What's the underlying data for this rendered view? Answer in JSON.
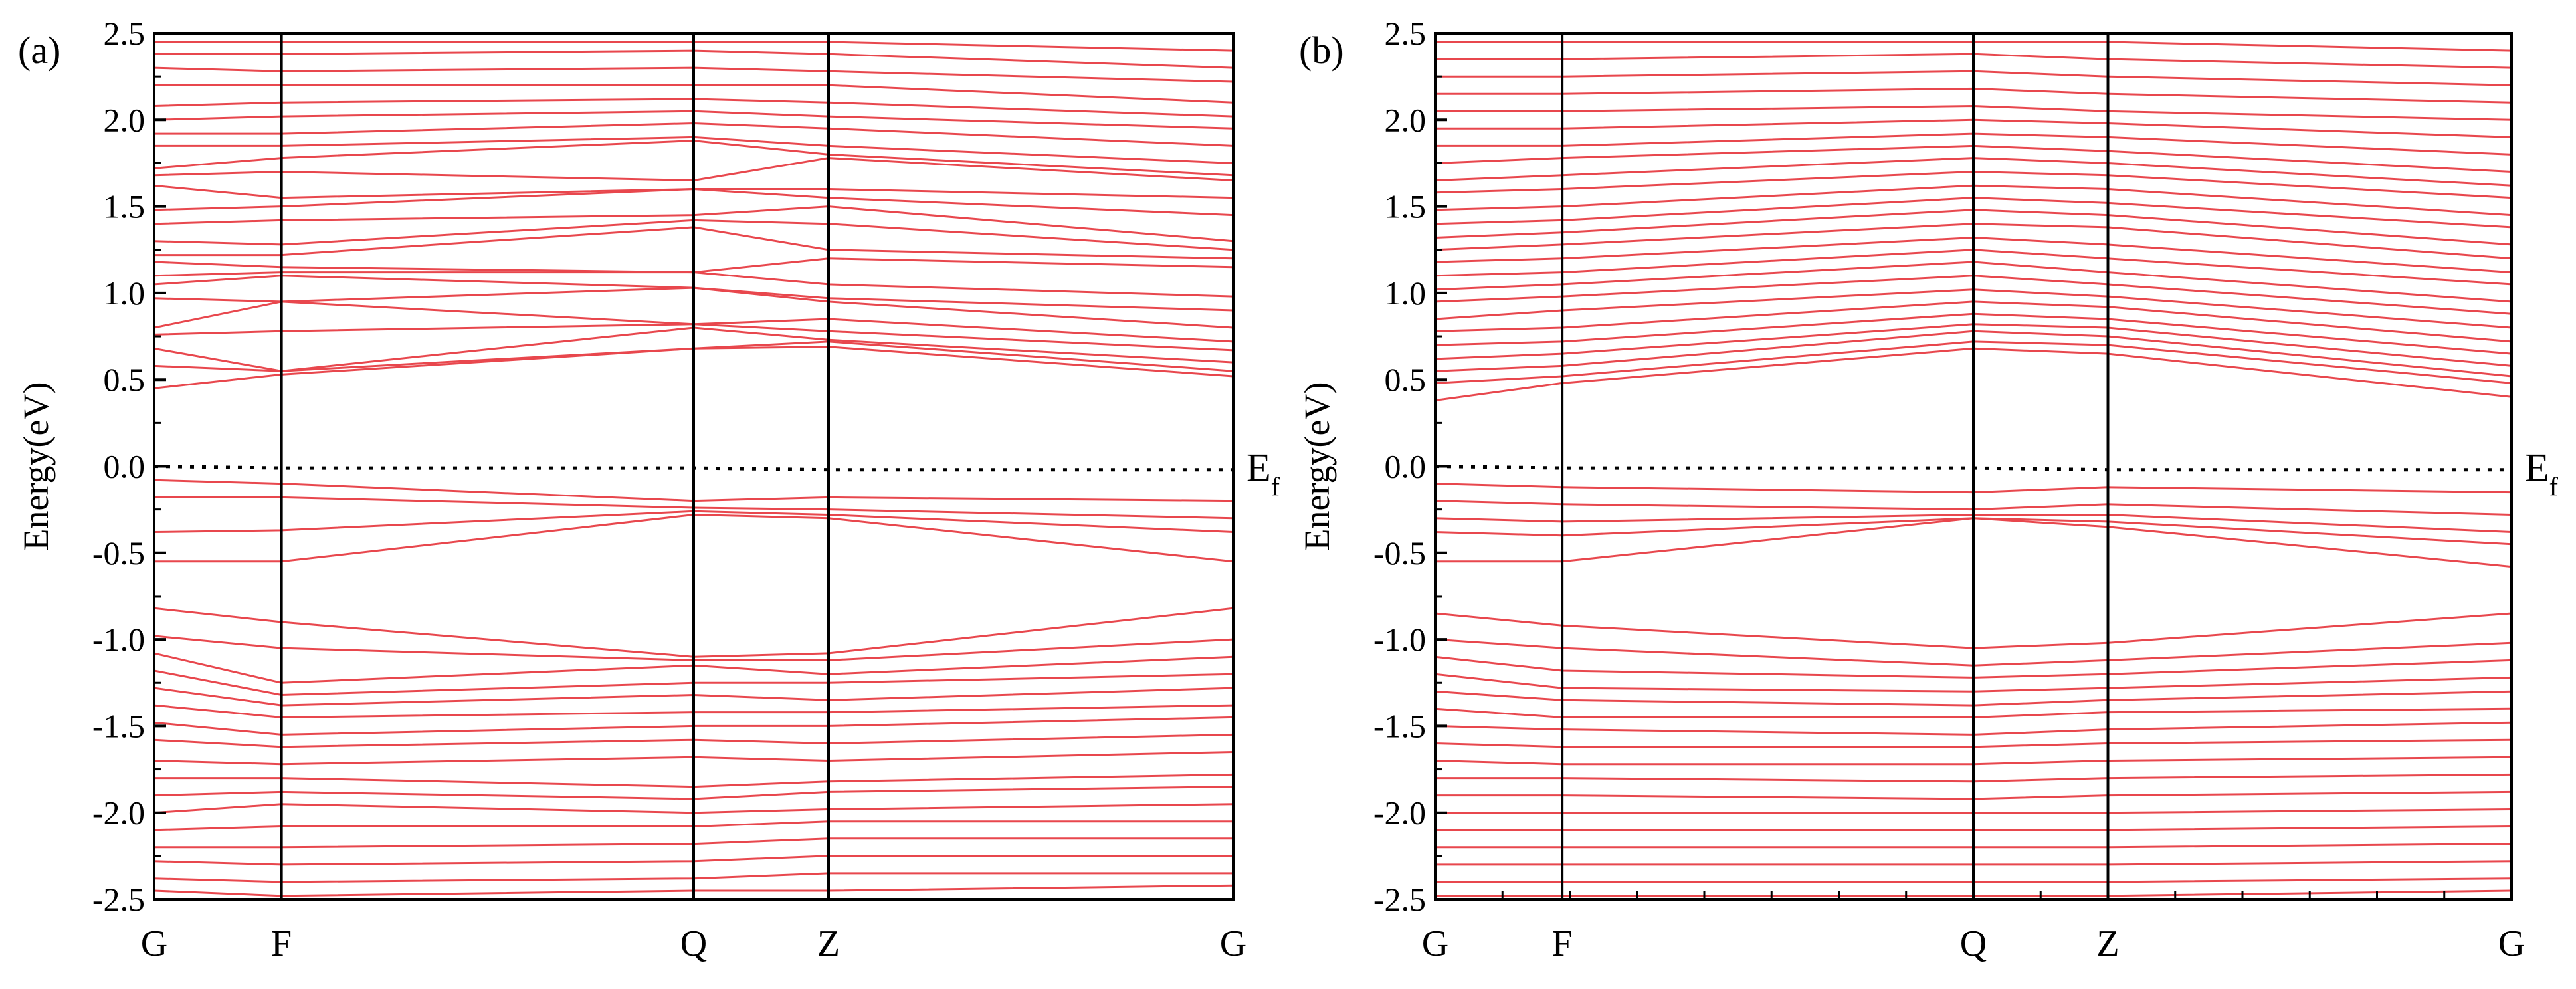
{
  "chart_data": [
    {
      "type": "line",
      "panel_label": "(a)",
      "ylabel": "Energy(eV)",
      "ylim": [
        -2.5,
        2.5
      ],
      "y_ticks": [
        -2.5,
        -2.0,
        -1.5,
        -1.0,
        -0.5,
        0.0,
        0.5,
        1.0,
        1.5,
        2.0,
        2.5
      ],
      "y_tick_labels": [
        "-2.5",
        "-2.0",
        "-1.5",
        "-1.0",
        "-0.5",
        "0.0",
        "0.5",
        "1.0",
        "1.5",
        "2.0",
        "2.5"
      ],
      "k_positions": [
        0,
        0.118,
        0.5,
        0.625,
        1.0
      ],
      "k_labels": [
        "G",
        "F",
        "Q",
        "Z",
        "G"
      ],
      "fermi_level": 0.0,
      "fermi_label": "E",
      "fermi_label_sub": "f",
      "band_color": "#e8474d",
      "fermi_line": [
        0.0,
        -0.01,
        -0.01,
        -0.02,
        -0.02
      ],
      "conduction_bands": [
        [
          0.45,
          0.53,
          0.68,
          0.69,
          0.52
        ],
        [
          0.58,
          0.55,
          0.68,
          0.72,
          0.55
        ],
        [
          0.68,
          0.55,
          0.8,
          0.73,
          0.6
        ],
        [
          0.76,
          0.78,
          0.82,
          0.78,
          0.67
        ],
        [
          0.8,
          0.95,
          0.82,
          0.85,
          0.72
        ],
        [
          0.97,
          0.95,
          1.03,
          0.95,
          0.8
        ],
        [
          1.05,
          1.1,
          1.03,
          0.97,
          0.9
        ],
        [
          1.1,
          1.12,
          1.12,
          1.05,
          0.98
        ],
        [
          1.18,
          1.15,
          1.12,
          1.2,
          1.15
        ],
        [
          1.22,
          1.22,
          1.38,
          1.25,
          1.2
        ],
        [
          1.3,
          1.28,
          1.42,
          1.4,
          1.25
        ],
        [
          1.4,
          1.42,
          1.45,
          1.5,
          1.3
        ],
        [
          1.48,
          1.5,
          1.6,
          1.55,
          1.45
        ],
        [
          1.62,
          1.55,
          1.6,
          1.6,
          1.55
        ],
        [
          1.68,
          1.7,
          1.65,
          1.78,
          1.65
        ],
        [
          1.72,
          1.78,
          1.88,
          1.8,
          1.68
        ],
        [
          1.85,
          1.85,
          1.9,
          1.85,
          1.75
        ],
        [
          1.92,
          1.92,
          1.98,
          1.95,
          1.85
        ],
        [
          2.0,
          2.02,
          2.05,
          2.02,
          1.95
        ],
        [
          2.08,
          2.1,
          2.12,
          2.1,
          2.02
        ],
        [
          2.2,
          2.2,
          2.2,
          2.2,
          2.1
        ],
        [
          2.3,
          2.28,
          2.3,
          2.28,
          2.22
        ],
        [
          2.38,
          2.38,
          2.4,
          2.38,
          2.3
        ],
        [
          2.45,
          2.45,
          2.45,
          2.45,
          2.4
        ]
      ],
      "valence_bands": [
        [
          -0.08,
          -0.1,
          -0.2,
          -0.18,
          -0.2
        ],
        [
          -0.18,
          -0.18,
          -0.24,
          -0.25,
          -0.3
        ],
        [
          -0.38,
          -0.37,
          -0.26,
          -0.28,
          -0.38
        ],
        [
          -0.55,
          -0.55,
          -0.28,
          -0.3,
          -0.55
        ],
        [
          -0.82,
          -0.9,
          -1.1,
          -1.08,
          -0.82
        ],
        [
          -0.98,
          -1.05,
          -1.12,
          -1.12,
          -1.0
        ],
        [
          -1.08,
          -1.25,
          -1.15,
          -1.2,
          -1.1
        ],
        [
          -1.18,
          -1.32,
          -1.25,
          -1.25,
          -1.2
        ],
        [
          -1.28,
          -1.38,
          -1.32,
          -1.35,
          -1.28
        ],
        [
          -1.38,
          -1.45,
          -1.42,
          -1.42,
          -1.38
        ],
        [
          -1.48,
          -1.55,
          -1.5,
          -1.5,
          -1.45
        ],
        [
          -1.58,
          -1.62,
          -1.58,
          -1.6,
          -1.55
        ],
        [
          -1.7,
          -1.72,
          -1.68,
          -1.7,
          -1.65
        ],
        [
          -1.8,
          -1.8,
          -1.85,
          -1.82,
          -1.78
        ],
        [
          -1.9,
          -1.88,
          -1.92,
          -1.88,
          -1.85
        ],
        [
          -2.0,
          -1.95,
          -2.0,
          -1.98,
          -1.95
        ],
        [
          -2.1,
          -2.08,
          -2.08,
          -2.05,
          -2.05
        ],
        [
          -2.2,
          -2.2,
          -2.18,
          -2.15,
          -2.15
        ],
        [
          -2.28,
          -2.3,
          -2.28,
          -2.25,
          -2.25
        ],
        [
          -2.38,
          -2.4,
          -2.38,
          -2.35,
          -2.35
        ],
        [
          -2.45,
          -2.48,
          -2.45,
          -2.45,
          -2.42
        ]
      ]
    },
    {
      "type": "line",
      "panel_label": "(b)",
      "ylabel": "Energy(eV)",
      "ylim": [
        -2.5,
        2.5
      ],
      "y_ticks": [
        -2.5,
        -2.0,
        -1.5,
        -1.0,
        -0.5,
        0.0,
        0.5,
        1.0,
        1.5,
        2.0,
        2.5
      ],
      "y_tick_labels": [
        "-2.5",
        "-2.0",
        "-1.5",
        "-1.0",
        "-0.5",
        "0.0",
        "0.5",
        "1.0",
        "1.5",
        "2.0",
        "2.5"
      ],
      "k_positions": [
        0,
        0.118,
        0.5,
        0.625,
        1.0
      ],
      "k_labels": [
        "G",
        "F",
        "Q",
        "Z",
        "G"
      ],
      "fermi_level": 0.0,
      "fermi_label": "E",
      "fermi_label_sub": "f",
      "band_color": "#e8474d",
      "fermi_line": [
        0.0,
        -0.01,
        -0.01,
        -0.02,
        -0.02
      ],
      "conduction_bands": [
        [
          0.38,
          0.48,
          0.68,
          0.65,
          0.4
        ],
        [
          0.48,
          0.52,
          0.72,
          0.7,
          0.48
        ],
        [
          0.55,
          0.58,
          0.78,
          0.75,
          0.52
        ],
        [
          0.62,
          0.65,
          0.82,
          0.8,
          0.58
        ],
        [
          0.7,
          0.72,
          0.88,
          0.85,
          0.65
        ],
        [
          0.78,
          0.8,
          0.95,
          0.92,
          0.72
        ],
        [
          0.85,
          0.9,
          1.02,
          0.98,
          0.8
        ],
        [
          0.95,
          0.98,
          1.1,
          1.05,
          0.88
        ],
        [
          1.02,
          1.05,
          1.18,
          1.12,
          0.95
        ],
        [
          1.1,
          1.12,
          1.25,
          1.2,
          1.05
        ],
        [
          1.18,
          1.2,
          1.32,
          1.28,
          1.12
        ],
        [
          1.25,
          1.28,
          1.4,
          1.38,
          1.2
        ],
        [
          1.32,
          1.35,
          1.48,
          1.45,
          1.28
        ],
        [
          1.4,
          1.42,
          1.55,
          1.52,
          1.38
        ],
        [
          1.48,
          1.5,
          1.62,
          1.6,
          1.45
        ],
        [
          1.58,
          1.6,
          1.7,
          1.68,
          1.55
        ],
        [
          1.65,
          1.68,
          1.78,
          1.75,
          1.62
        ],
        [
          1.75,
          1.78,
          1.85,
          1.82,
          1.7
        ],
        [
          1.85,
          1.85,
          1.92,
          1.9,
          1.8
        ],
        [
          1.95,
          1.95,
          2.0,
          1.98,
          1.9
        ],
        [
          2.05,
          2.05,
          2.08,
          2.05,
          2.0
        ],
        [
          2.15,
          2.15,
          2.18,
          2.15,
          2.1
        ],
        [
          2.25,
          2.25,
          2.28,
          2.25,
          2.2
        ],
        [
          2.35,
          2.35,
          2.38,
          2.35,
          2.3
        ],
        [
          2.45,
          2.45,
          2.45,
          2.45,
          2.4
        ]
      ],
      "valence_bands": [
        [
          -0.1,
          -0.12,
          -0.15,
          -0.12,
          -0.15
        ],
        [
          -0.2,
          -0.22,
          -0.25,
          -0.22,
          -0.28
        ],
        [
          -0.3,
          -0.32,
          -0.28,
          -0.28,
          -0.38
        ],
        [
          -0.38,
          -0.4,
          -0.3,
          -0.32,
          -0.45
        ],
        [
          -0.55,
          -0.55,
          -0.3,
          -0.35,
          -0.58
        ],
        [
          -0.85,
          -0.92,
          -1.05,
          -1.02,
          -0.85
        ],
        [
          -1.0,
          -1.05,
          -1.15,
          -1.12,
          -1.02
        ],
        [
          -1.1,
          -1.18,
          -1.22,
          -1.2,
          -1.12
        ],
        [
          -1.2,
          -1.28,
          -1.3,
          -1.28,
          -1.22
        ],
        [
          -1.3,
          -1.35,
          -1.38,
          -1.35,
          -1.3
        ],
        [
          -1.4,
          -1.45,
          -1.45,
          -1.42,
          -1.4
        ],
        [
          -1.5,
          -1.52,
          -1.55,
          -1.52,
          -1.48
        ],
        [
          -1.6,
          -1.62,
          -1.62,
          -1.6,
          -1.58
        ],
        [
          -1.7,
          -1.72,
          -1.72,
          -1.7,
          -1.68
        ],
        [
          -1.8,
          -1.8,
          -1.82,
          -1.8,
          -1.78
        ],
        [
          -1.9,
          -1.9,
          -1.92,
          -1.9,
          -1.88
        ],
        [
          -2.0,
          -2.0,
          -2.0,
          -2.0,
          -1.98
        ],
        [
          -2.1,
          -2.1,
          -2.1,
          -2.1,
          -2.08
        ],
        [
          -2.2,
          -2.2,
          -2.2,
          -2.2,
          -2.18
        ],
        [
          -2.3,
          -2.3,
          -2.3,
          -2.3,
          -2.28
        ],
        [
          -2.4,
          -2.4,
          -2.4,
          -2.4,
          -2.38
        ],
        [
          -2.48,
          -2.48,
          -2.48,
          -2.48,
          -2.45
        ]
      ]
    }
  ]
}
